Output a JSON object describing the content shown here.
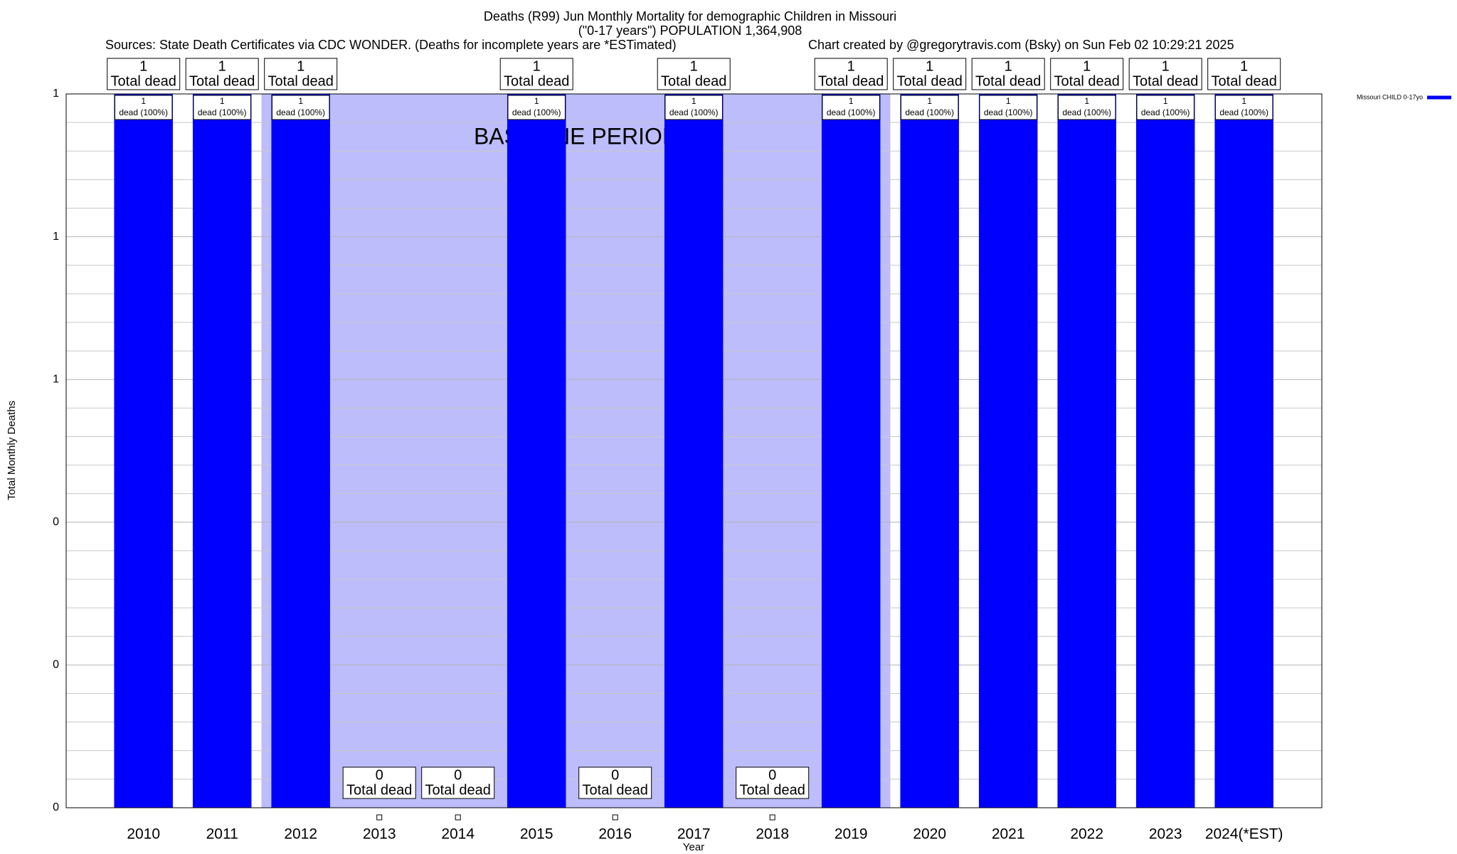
{
  "chart_data": {
    "type": "bar",
    "title": "Deaths (R99) Jun Monthly Mortality for demographic Children in Missouri",
    "subtitle": "(\"0-17 years\") POPULATION 1,364,908",
    "source": "Sources: State Death Certificates via CDC WONDER. (Deaths for incomplete years are *ESTimated)",
    "credit": "Chart created by @gregorytravis.com (Bsky) on Sun Feb 02 10:29:21 2025",
    "x_label": "Year",
    "y_label": "Total Monthly Deaths",
    "categories": [
      "2010",
      "2011",
      "2012",
      "2013",
      "2014",
      "2015",
      "2016",
      "2017",
      "2018",
      "2019",
      "2020",
      "2021",
      "2022",
      "2023",
      "2024(*EST)"
    ],
    "series": [
      {
        "name": "Missouri CHILD 0-17yo",
        "color": "#0000ff",
        "values": [
          1,
          1,
          1,
          0,
          0,
          1,
          0,
          1,
          0,
          1,
          1,
          1,
          1,
          1,
          1
        ],
        "value_label_caption": "Total dead",
        "inner_labels": [
          "dead (100%)",
          "dead (100%)",
          "dead (100%)",
          null,
          null,
          "dead (100%)",
          null,
          "dead (100%)",
          null,
          "dead (100%)",
          "dead (100%)",
          "dead (100%)",
          "dead (100%)",
          "dead (100%)",
          "dead (100%)"
        ]
      }
    ],
    "baseline_period": {
      "label": "BASELINE PERIOD",
      "start": "2012",
      "end": "2019",
      "color": "#bdbdfb"
    },
    "ylim": [
      0,
      1
    ],
    "yticks": [
      0,
      {
        "value": 0.2,
        "label": "0"
      },
      {
        "value": 0.4,
        "label": "0"
      },
      {
        "value": 0.6,
        "label": "1"
      },
      {
        "value": 0.8,
        "label": "1"
      },
      1
    ],
    "yticks_minor": [
      0.04,
      0.08,
      0.12,
      0.16,
      0.24,
      0.28,
      0.32,
      0.36,
      0.44,
      0.48,
      0.52,
      0.56,
      0.64,
      0.68,
      0.72,
      0.76,
      0.84,
      0.88,
      0.92,
      0.96
    ],
    "grid": true,
    "legend": "top-right"
  }
}
